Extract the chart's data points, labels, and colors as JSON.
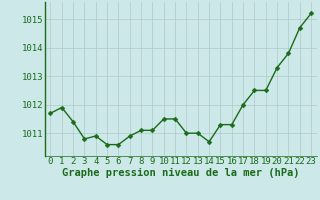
{
  "x": [
    0,
    1,
    2,
    3,
    4,
    5,
    6,
    7,
    8,
    9,
    10,
    11,
    12,
    13,
    14,
    15,
    16,
    17,
    18,
    19,
    20,
    21,
    22,
    23
  ],
  "y": [
    1011.7,
    1011.9,
    1011.4,
    1010.8,
    1010.9,
    1010.6,
    1010.6,
    1010.9,
    1011.1,
    1011.1,
    1011.5,
    1011.5,
    1011.0,
    1011.0,
    1010.7,
    1011.3,
    1011.3,
    1012.0,
    1012.5,
    1012.5,
    1013.3,
    1013.8,
    1014.7,
    1015.2
  ],
  "line_color": "#1a6b1a",
  "marker_color": "#1a6b1a",
  "bg_color": "#cce8e8",
  "plot_bg_color": "#cce8e8",
  "grid_color": "#b0c8c8",
  "xlabel": "Graphe pression niveau de la mer (hPa)",
  "xlabel_color": "#1a6b1a",
  "ylabel_ticks": [
    1011,
    1012,
    1013,
    1014,
    1015
  ],
  "ylim": [
    1010.2,
    1015.6
  ],
  "xlim": [
    -0.5,
    23.5
  ],
  "xtick_labels": [
    "0",
    "1",
    "2",
    "3",
    "4",
    "5",
    "6",
    "7",
    "8",
    "9",
    "10",
    "11",
    "12",
    "13",
    "14",
    "15",
    "16",
    "17",
    "18",
    "19",
    "20",
    "21",
    "22",
    "23"
  ],
  "tick_color": "#1a6b1a",
  "spine_color": "#1a6b1a",
  "font_size": 6.5,
  "xlabel_fontsize": 7.5,
  "marker_size": 2.5,
  "line_width": 1.0
}
